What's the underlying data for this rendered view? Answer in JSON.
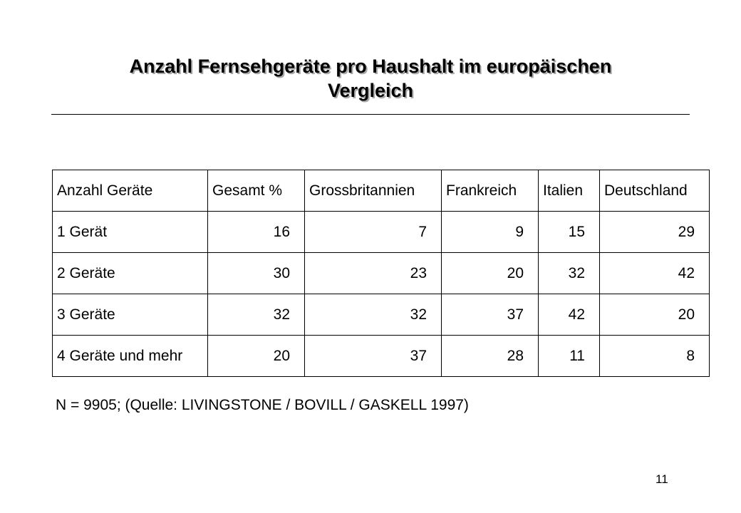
{
  "slide": {
    "title_line1": "Anzahl Fernsehgeräte pro Haushalt im europäischen",
    "title_line2": "Vergleich",
    "page_number": "11"
  },
  "table": {
    "headers": [
      "Anzahl Geräte",
      "Gesamt %",
      "Grossbritannien",
      "Frankreich",
      "Italien",
      "Deutschland"
    ],
    "rows": [
      [
        "1 Gerät",
        "16",
        "7",
        "9",
        "15",
        "29"
      ],
      [
        "2 Geräte",
        "30",
        "23",
        "20",
        "32",
        "42"
      ],
      [
        "3 Geräte",
        "32",
        "32",
        "37",
        "42",
        "20"
      ],
      [
        "4 Geräte und mehr",
        "20",
        "37",
        "28",
        "11",
        "8"
      ]
    ]
  },
  "footnote": "N = 9905; (Quelle: LIVINGSTONE / BOVILL / GASKELL 1997)"
}
